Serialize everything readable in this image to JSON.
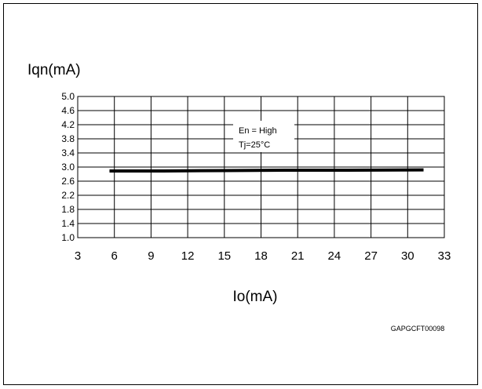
{
  "figure": {
    "code": "GAPGCFT00098"
  },
  "chart_data": {
    "type": "line",
    "xlabel": "Io(mA)",
    "ylabel": "Iqn(mA)",
    "xlim": [
      3,
      33
    ],
    "ylim": [
      1.0,
      5.0
    ],
    "x_ticks": [
      3,
      6,
      9,
      12,
      15,
      18,
      21,
      24,
      27,
      30,
      33
    ],
    "x_tick_labels": [
      "3",
      "6",
      "9",
      "12",
      "15",
      "18",
      "21",
      "24",
      "27",
      "30",
      "33"
    ],
    "y_ticks": [
      1.0,
      1.4,
      1.8,
      2.2,
      2.6,
      3.0,
      3.4,
      3.8,
      4.2,
      4.6,
      5.0
    ],
    "y_tick_labels": [
      "1.0",
      "1.4",
      "1.8",
      "2.2",
      "2.6",
      "3.0",
      "3.4",
      "3.8",
      "4.2",
      "4.6",
      "5.0"
    ],
    "grid": true,
    "legend_placement": "top-center",
    "annotation_lines": [
      "En = High",
      "Tj=25°C"
    ],
    "series": [
      {
        "x": [
          5.6,
          10,
          15,
          20,
          25,
          31.3
        ],
        "y": [
          2.89,
          2.89,
          2.9,
          2.91,
          2.91,
          2.92
        ]
      }
    ]
  }
}
